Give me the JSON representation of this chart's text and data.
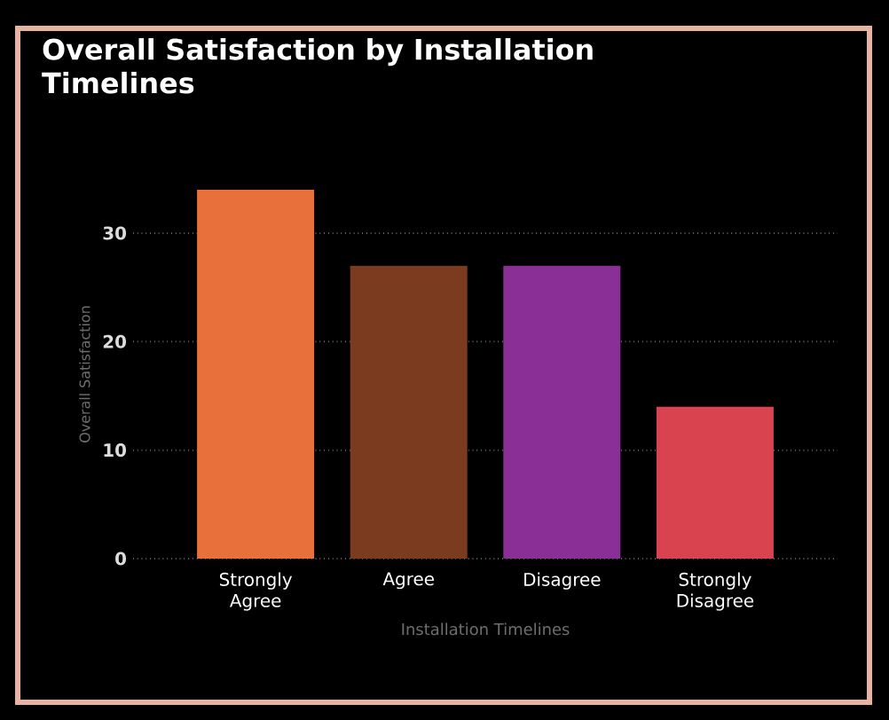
{
  "chart_data": {
    "type": "bar",
    "title": "Overall Satisfaction by Installation Timelines",
    "xlabel": "Installation Timelines",
    "ylabel": "Overall Satisfaction",
    "categories": [
      "Strongly Agree",
      "Agree",
      "Disagree",
      "Strongly Disagree"
    ],
    "values": [
      34,
      27,
      27,
      14
    ],
    "colors": [
      "#e8703a",
      "#7a3b1e",
      "#8a2f96",
      "#d9434f"
    ],
    "ylim": [
      0,
      34
    ],
    "yticks": [
      0,
      10,
      20,
      30
    ],
    "grid": "y"
  }
}
